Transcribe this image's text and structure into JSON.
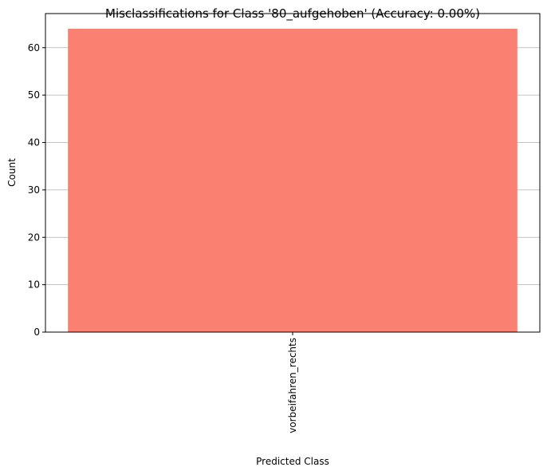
{
  "chart_data": {
    "type": "bar",
    "title": "Misclassifications for Class '80_aufgehoben' (Accuracy: 0.00%)",
    "xlabel": "Predicted Class",
    "ylabel": "Count",
    "categories": [
      "vorbeifahren_rechts"
    ],
    "values": [
      64
    ],
    "ylim": [
      0,
      67.2
    ],
    "yticks": [
      0,
      10,
      20,
      30,
      40,
      50,
      60
    ],
    "grid": "y",
    "bar_color": "#fa8072"
  }
}
